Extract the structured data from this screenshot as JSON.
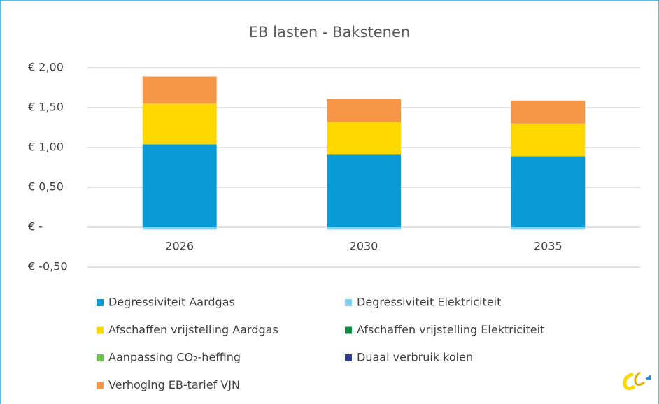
{
  "chart_data": {
    "type": "stacked_bar",
    "title": "EB lasten - Bakstenen",
    "categories": [
      "2026",
      "2030",
      "2035"
    ],
    "series": [
      {
        "name": "Degressiviteit Aardgas",
        "color": "#0a9bd7",
        "values": [
          1.04,
          0.91,
          0.89
        ]
      },
      {
        "name": "Degressiviteit Elektriciteit",
        "color": "#86d1f2",
        "values": [
          -0.03,
          -0.03,
          -0.03
        ]
      },
      {
        "name": "Afschaffen vrijstelling Aardgas",
        "color": "#ffd800",
        "values": [
          0.51,
          0.41,
          0.41
        ]
      },
      {
        "name": "Afschaffen vrijstelling Elektriciteit",
        "color": "#108a3c",
        "values": [
          0,
          0,
          0
        ]
      },
      {
        "name": "Aanpassing CO₂-heffing",
        "color": "#6cc24a",
        "values": [
          0,
          0,
          0
        ]
      },
      {
        "name": "Duaal verbruik kolen",
        "color": "#2e3f8f",
        "values": [
          0,
          0,
          0
        ]
      },
      {
        "name": "Verhoging EB-tarief VJN",
        "color": "#f79646",
        "values": [
          0.34,
          0.29,
          0.29
        ]
      }
    ],
    "ylim": [
      -0.5,
      2.0
    ],
    "yticks": [
      {
        "value": -0.5,
        "label": "€ -0,50"
      },
      {
        "value": 0,
        "label": "€ -"
      },
      {
        "value": 0.5,
        "label": "€ 0,50"
      },
      {
        "value": 1.0,
        "label": "€ 1,00"
      },
      {
        "value": 1.5,
        "label": "€ 1,50"
      },
      {
        "value": 2.0,
        "label": "€ 2,00"
      }
    ],
    "grid": true,
    "legend": "bottom"
  }
}
